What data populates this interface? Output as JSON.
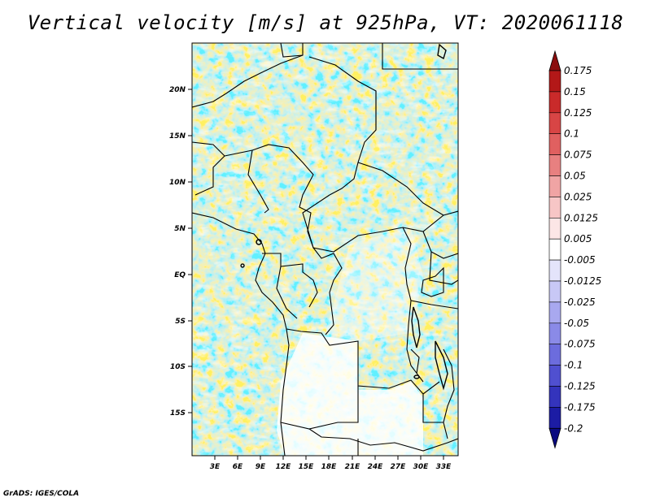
{
  "title": "Vertical velocity [m/s] at 925hPa, VT: 2020061118",
  "footer": "GrADS: IGES/COLA",
  "map": {
    "lat_ticks": [
      "20N",
      "15N",
      "10N",
      "5N",
      "EQ",
      "5S",
      "10S",
      "15S"
    ],
    "lon_ticks": [
      "3E",
      "6E",
      "9E",
      "12E",
      "15E",
      "18E",
      "21E",
      "24E",
      "27E",
      "30E",
      "33E"
    ]
  },
  "colorbar": {
    "labels": [
      "0.175",
      "0.15",
      "0.125",
      "0.1",
      "0.075",
      "0.05",
      "0.025",
      "0.0125",
      "0.005",
      "-0.005",
      "-0.0125",
      "-0.025",
      "-0.05",
      "-0.075",
      "-0.1",
      "-0.125",
      "-0.175",
      "-0.2"
    ],
    "colors": [
      "#8b0e0e",
      "#b31818",
      "#c92a2a",
      "#d84545",
      "#e06060",
      "#e88080",
      "#f0a4a4",
      "#f7c6c6",
      "#fce6e6",
      "#ffffff",
      "#e4e4fb",
      "#c8c8f6",
      "#a8a8ef",
      "#8a8ae7",
      "#6c6cdd",
      "#5050d0",
      "#3434bc",
      "#1c1ca4",
      "#0a0a80"
    ]
  }
}
